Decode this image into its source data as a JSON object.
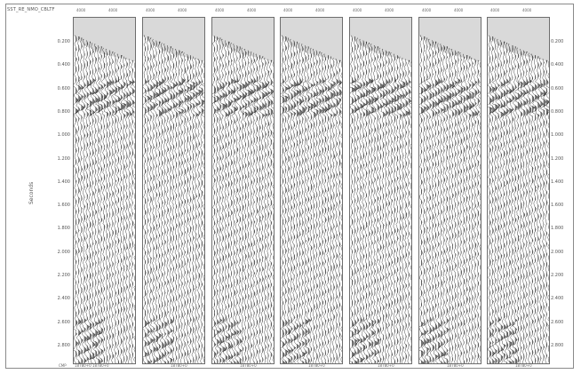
{
  "window": {
    "title": "SST_RE_NMO_CBLTF"
  },
  "header_ticks": [
    "4000",
    "4000",
    "4000",
    "4000",
    "4000",
    "4000",
    "4000",
    "4000",
    "4000",
    "4000",
    "4000",
    "4000",
    "4000",
    "4000"
  ],
  "y_axis": {
    "label": "Seconds",
    "ticks": [
      "0.200",
      "0.400",
      "0.600",
      "0.800",
      "1.000",
      "1.200",
      "1.400",
      "1.600",
      "1.800",
      "2.000",
      "2.200",
      "2.400",
      "2.600",
      "2.800"
    ]
  },
  "footer": {
    "cdp_prefix": "CMP",
    "labels": [
      "18780+0 18780+0",
      "18780+0",
      "18780+0",
      "18780+0",
      "18780+0",
      "18780+0",
      "18780+0"
    ]
  },
  "panels": [
    {
      "id": "gather-1"
    },
    {
      "id": "gather-2"
    },
    {
      "id": "gather-3"
    },
    {
      "id": "gather-4"
    },
    {
      "id": "gather-5"
    },
    {
      "id": "gather-6"
    },
    {
      "id": "gather-7"
    }
  ],
  "colors": {
    "panel_bg": "#d9d9d9",
    "trace": "#000000",
    "frame": "#8a8a8a"
  }
}
